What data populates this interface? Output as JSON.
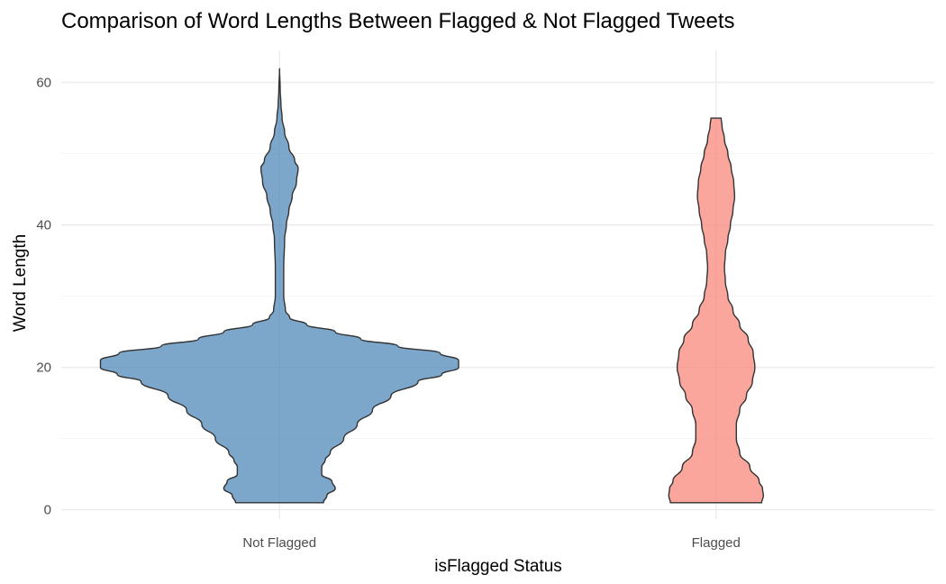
{
  "chart_data": {
    "type": "violin",
    "title": "Comparison of Word Lengths Between Flagged & Not Flagged Tweets",
    "xlabel": "isFlagged Status",
    "ylabel": "Word Length",
    "ylim": [
      -1.3,
      64.5
    ],
    "yticks": [
      0,
      20,
      40,
      60
    ],
    "yticks_minor": [
      10,
      30,
      50
    ],
    "grid": true,
    "legend": "none",
    "categories": [
      "Not Flagged",
      "Flagged"
    ],
    "series": [
      {
        "category": "Not Flagged",
        "color": "#4682B4",
        "min": 1,
        "max": 62,
        "profile_halfwidth": [
          [
            1,
            0.26
          ],
          [
            2,
            0.28
          ],
          [
            3,
            0.33
          ],
          [
            4,
            0.31
          ],
          [
            5,
            0.25
          ],
          [
            6,
            0.25
          ],
          [
            7,
            0.27
          ],
          [
            8,
            0.3
          ],
          [
            10,
            0.38
          ],
          [
            12,
            0.46
          ],
          [
            14,
            0.55
          ],
          [
            16,
            0.66
          ],
          [
            18,
            0.82
          ],
          [
            19,
            0.96
          ],
          [
            20,
            1.06
          ],
          [
            21,
            1.06
          ],
          [
            22,
            0.95
          ],
          [
            23,
            0.7
          ],
          [
            24,
            0.48
          ],
          [
            25,
            0.33
          ],
          [
            26,
            0.16
          ],
          [
            27,
            0.06
          ],
          [
            28,
            0.035
          ],
          [
            30,
            0.025
          ],
          [
            34,
            0.025
          ],
          [
            38,
            0.03
          ],
          [
            40,
            0.04
          ],
          [
            42,
            0.055
          ],
          [
            44,
            0.075
          ],
          [
            46,
            0.1
          ],
          [
            48,
            0.11
          ],
          [
            49,
            0.09
          ],
          [
            51,
            0.055
          ],
          [
            53,
            0.03
          ],
          [
            55,
            0.015
          ],
          [
            57,
            0.008
          ],
          [
            59,
            0.004
          ],
          [
            62,
            0.0
          ]
        ]
      },
      {
        "category": "Flagged",
        "color": "#FA8072",
        "min": 1,
        "max": 55,
        "profile_halfwidth": [
          [
            1,
            0.27
          ],
          [
            2,
            0.28
          ],
          [
            3,
            0.275
          ],
          [
            4,
            0.255
          ],
          [
            6,
            0.2
          ],
          [
            8,
            0.14
          ],
          [
            10,
            0.12
          ],
          [
            12,
            0.12
          ],
          [
            14,
            0.14
          ],
          [
            16,
            0.18
          ],
          [
            18,
            0.215
          ],
          [
            20,
            0.23
          ],
          [
            22,
            0.22
          ],
          [
            24,
            0.19
          ],
          [
            26,
            0.14
          ],
          [
            28,
            0.1
          ],
          [
            30,
            0.07
          ],
          [
            32,
            0.055
          ],
          [
            34,
            0.05
          ],
          [
            36,
            0.055
          ],
          [
            38,
            0.07
          ],
          [
            40,
            0.085
          ],
          [
            42,
            0.1
          ],
          [
            44,
            0.11
          ],
          [
            46,
            0.105
          ],
          [
            48,
            0.09
          ],
          [
            50,
            0.07
          ],
          [
            52,
            0.05
          ],
          [
            54,
            0.035
          ],
          [
            55,
            0.03
          ]
        ]
      }
    ]
  }
}
